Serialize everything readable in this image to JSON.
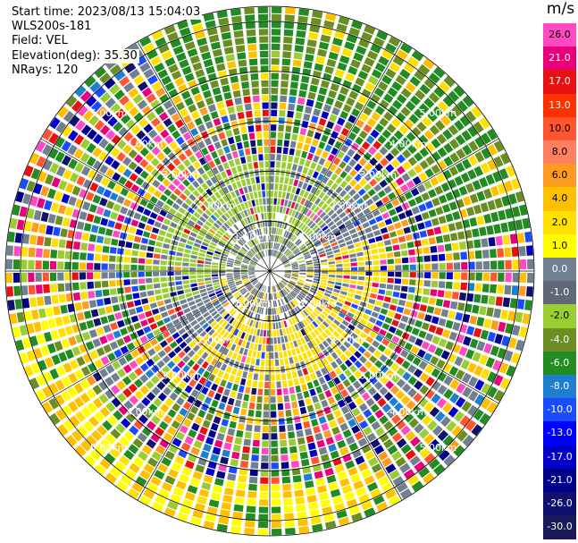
{
  "header": {
    "start_time": "Start time: 2023/08/13 15:04:03",
    "station": "WLS200s-181",
    "field": "Field: VEL",
    "elevation": "Elevation(deg): 35.30",
    "nrays": "NRays: 120"
  },
  "chart_data": {
    "type": "heatmap",
    "projection": "polar-ppi",
    "rays": 120,
    "range_rings_km": [
      1.0,
      2.0,
      3.0,
      4.0,
      5.0
    ],
    "ring_labels": [
      "1.00km",
      "2.00km",
      "3.00km",
      "4.00km",
      "5.00km"
    ],
    "colorbar": {
      "unit": "m/s",
      "ticks": [
        "26.0",
        "21.0",
        "17.0",
        "13.0",
        "10.0",
        "8.0",
        "6.0",
        "4.0",
        "2.0",
        "1.0",
        "0.0",
        "-1.0",
        "-2.0",
        "-4.0",
        "-6.0",
        "-8.0",
        "-10.0",
        "-13.0",
        "-17.0",
        "-21.0",
        "-26.0",
        "-30.0"
      ],
      "colors": [
        "#ff49c2",
        "#e8007a",
        "#e81010",
        "#ff3000",
        "#ff5530",
        "#ff8060",
        "#ff9a20",
        "#ffc000",
        "#ffe000",
        "#ffff00",
        "#708090",
        "#606878",
        "#9acd32",
        "#6b8e23",
        "#228b22",
        "#1e7fd0",
        "#1a4cff",
        "#0000ff",
        "#0000c8",
        "#00008b",
        "#10106e",
        "#1a1a5a"
      ]
    }
  }
}
